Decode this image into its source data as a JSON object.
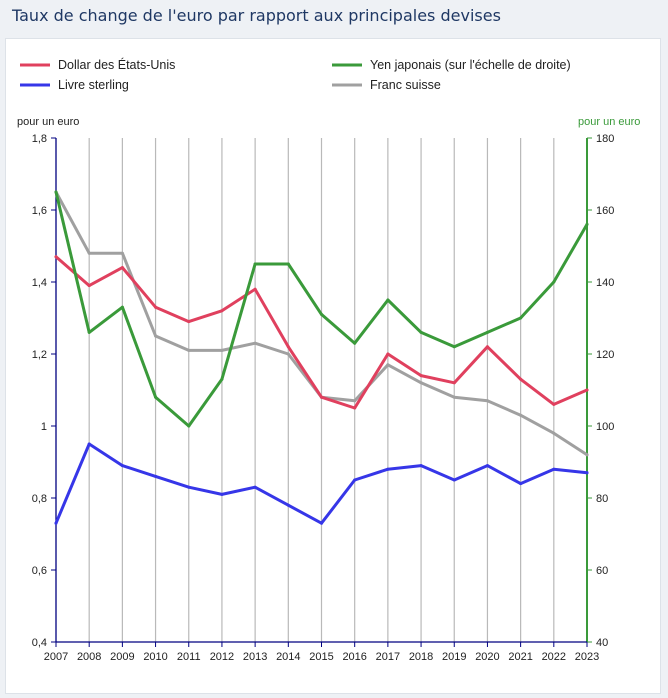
{
  "page": {
    "title": "Taux de change de l'euro par rapport aux principales devises"
  },
  "chart_data": {
    "type": "line",
    "title": "Taux de change de l'euro par rapport aux principales devises",
    "x": [
      "2007",
      "2008",
      "2009",
      "2010",
      "2011",
      "2012",
      "2013",
      "2014",
      "2015",
      "2016",
      "2017",
      "2018",
      "2019",
      "2020",
      "2021",
      "2022",
      "2023"
    ],
    "left_axis": {
      "label": "pour un euro",
      "ylim": [
        0.4,
        1.8
      ],
      "ticks": [
        "0,4",
        "0,6",
        "0,8",
        "1",
        "1,2",
        "1,4",
        "1,6",
        "1,8"
      ],
      "color": "#000080"
    },
    "right_axis": {
      "label": "pour un euro",
      "ylim": [
        40,
        180
      ],
      "ticks": [
        "40",
        "60",
        "80",
        "100",
        "120",
        "140",
        "160",
        "180"
      ],
      "color": "#3a9a3a"
    },
    "grid": "vertical",
    "legend_position": "top",
    "series": [
      {
        "name": "Dollar des États-Unis",
        "axis": "left",
        "color": "#e0405e",
        "values": [
          1.47,
          1.39,
          1.44,
          1.33,
          1.29,
          1.32,
          1.38,
          1.22,
          1.08,
          1.05,
          1.2,
          1.14,
          1.12,
          1.22,
          1.13,
          1.06,
          1.1
        ]
      },
      {
        "name": "Livre sterling",
        "axis": "left",
        "color": "#3636e8",
        "values": [
          0.73,
          0.95,
          0.89,
          0.86,
          0.83,
          0.81,
          0.83,
          0.78,
          0.73,
          0.85,
          0.88,
          0.89,
          0.85,
          0.89,
          0.84,
          0.88,
          0.87
        ]
      },
      {
        "name": "Yen japonais (sur l'échelle de droite)",
        "axis": "right",
        "color": "#3a9a3a",
        "values": [
          165,
          126,
          133,
          108,
          100,
          113,
          145,
          145,
          131,
          123,
          135,
          126,
          122,
          126,
          130,
          140,
          156
        ]
      },
      {
        "name": "Franc suisse",
        "axis": "left",
        "color": "#a0a0a0",
        "values": [
          1.65,
          1.48,
          1.48,
          1.25,
          1.21,
          1.21,
          1.23,
          1.2,
          1.08,
          1.07,
          1.17,
          1.12,
          1.08,
          1.07,
          1.03,
          0.98,
          0.92
        ]
      }
    ]
  }
}
